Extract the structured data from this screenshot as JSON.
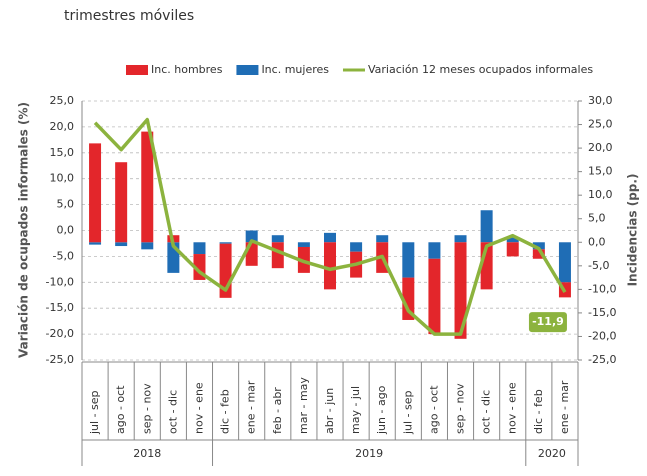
{
  "chart_data": {
    "type": "bar",
    "subtitle": "trimestres móviles",
    "y_label": "Variación de ocupados informales (%)",
    "y2_label": "Incidencias (pp.)",
    "categories": [
      "jul - sep",
      "ago - oct",
      "sep - nov",
      "oct - dic",
      "nov - ene",
      "dic - feb",
      "ene - mar",
      "feb - abr",
      "mar - may",
      "abr - jun",
      "may - jul",
      "jun - ago",
      "jul - sep",
      "ago - oct",
      "sep - nov",
      "oct - dic",
      "nov - ene",
      "dic - feb",
      "ene - mar"
    ],
    "year_groups": [
      {
        "label": "2018",
        "count": 5
      },
      {
        "label": "2019",
        "count": 12
      },
      {
        "label": "2020",
        "count": 2
      }
    ],
    "series": [
      {
        "name": "Inc. hombres",
        "type": "bar",
        "axis": "y2",
        "color": "#e3262b",
        "values": [
          21.0,
          17.0,
          23.5,
          1.5,
          -5.5,
          -11.5,
          -5.0,
          -5.5,
          -5.5,
          -10.0,
          -5.5,
          -6.5,
          -9.0,
          -16.0,
          -20.5,
          -10.0,
          -3.0,
          -2.0,
          -3.2
        ]
      },
      {
        "name": "Inc. mujeres",
        "type": "bar",
        "axis": "y2",
        "color": "#1f6db5",
        "values": [
          -0.5,
          -0.8,
          -1.5,
          -6.5,
          -2.5,
          -0.3,
          2.5,
          1.5,
          -1.0,
          2.0,
          -2.0,
          1.5,
          -7.5,
          -3.5,
          1.5,
          6.8,
          1.0,
          -1.5,
          -8.5
        ]
      },
      {
        "name": "Variación 12 meses ocupados informales",
        "type": "line",
        "axis": "y",
        "color": "#8cb33e",
        "values": [
          20.8,
          15.6,
          21.4,
          -3.0,
          -8.0,
          -11.5,
          -2.0,
          -4.0,
          -6.0,
          -7.5,
          -6.5,
          -5.0,
          -15.5,
          -20.0,
          -20.0,
          -3.0,
          -1.0,
          -3.5,
          -11.9
        ],
        "value_labels": [
          null,
          null,
          null,
          null,
          null,
          null,
          null,
          null,
          null,
          null,
          null,
          null,
          null,
          null,
          null,
          null,
          null,
          null,
          "-11,9"
        ]
      }
    ],
    "ylim": [
      -25,
      25
    ],
    "yticks": [
      {
        "value": 25,
        "label": "25,0"
      },
      {
        "value": 20,
        "label": "20,0"
      },
      {
        "value": 15,
        "label": "15,0"
      },
      {
        "value": 10,
        "label": "10,0"
      },
      {
        "value": 5,
        "label": "5,0"
      },
      {
        "value": 0,
        "label": "0,0"
      },
      {
        "value": -5,
        "label": "-5,0"
      },
      {
        "value": -10,
        "label": "-10,0"
      },
      {
        "value": -15,
        "label": "-15,0"
      },
      {
        "value": -20,
        "label": "-20,0"
      },
      {
        "value": -25,
        "label": "-25,0"
      }
    ],
    "y2lim": [
      -25,
      30
    ],
    "y2ticks": [
      {
        "value": 30,
        "label": "30,0"
      },
      {
        "value": 25,
        "label": "25,0"
      },
      {
        "value": 20,
        "label": "20,0"
      },
      {
        "value": 15,
        "label": "15,0"
      },
      {
        "value": 10,
        "label": "10,0"
      },
      {
        "value": 5,
        "label": "5,0"
      },
      {
        "value": 0,
        "label": "0,0"
      },
      {
        "value": -5,
        "label": "-5,0"
      },
      {
        "value": -10,
        "label": "-10,0"
      },
      {
        "value": -15,
        "label": "-15,0"
      },
      {
        "value": -20,
        "label": "-20,0"
      },
      {
        "value": -25,
        "label": "-25,0"
      }
    ],
    "grid": true,
    "legend": "top"
  }
}
